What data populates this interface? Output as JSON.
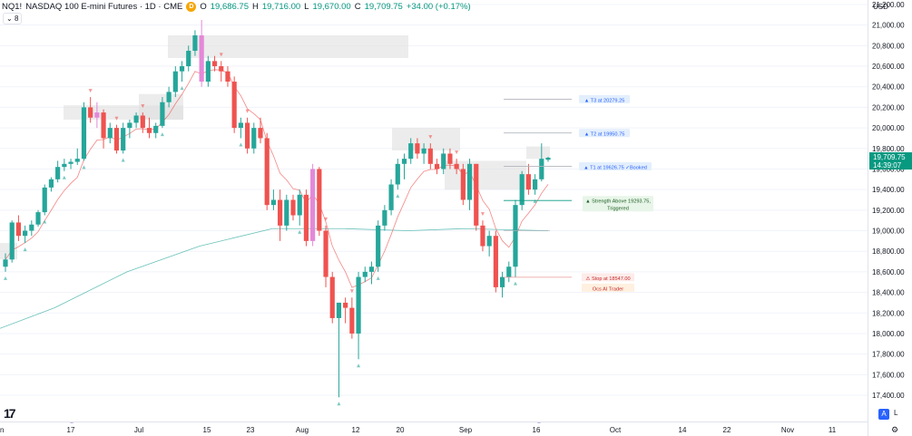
{
  "header": {
    "symbol": "NQ1!",
    "description": "NASDAQ 100 E-mini Futures · 1D · CME",
    "badge": "D",
    "open_label": "O",
    "open": "19,686.75",
    "high_label": "H",
    "high": "19,716.00",
    "low_label": "L",
    "low": "19,670.00",
    "close_label": "C",
    "close": "19,709.75",
    "change": "+34.00 (+0.17%)",
    "collapse_count": "8"
  },
  "currency": "USD",
  "last_price": {
    "value": "19,709.75",
    "countdown": "14:39:07",
    "color": "#089981"
  },
  "colors": {
    "up": "#26a69a",
    "down": "#ef5350",
    "highlight": "#e388d8",
    "ema_fast": "#ef5350",
    "ema_slow": "#26a69a",
    "zone": "#e0e0e0"
  },
  "annotations": {
    "t3": "▲ T3 at 20279.25",
    "t2": "▲ T2 at 19950.75",
    "t1": "▲ T1 at 19626.75 ✓Booked",
    "strength_line1": "▲ Strength Above 19293.75,",
    "strength_line2": "Triggered",
    "stop": "⚠ Stop at 18547.00",
    "trader": "Ocs AI Trader"
  },
  "chart_data": {
    "type": "candlestick",
    "y_ticks": [
      17400,
      17600,
      17800,
      18000,
      18200,
      18400,
      18600,
      18800,
      19000,
      19200,
      19400,
      19600,
      19800,
      20000,
      20200,
      20400,
      20600,
      20800,
      21000,
      21200
    ],
    "x_ticks": [
      "n",
      "17",
      "Jul",
      "15",
      "23",
      "Aug",
      "12",
      "20",
      "Sep",
      "16",
      "Oct",
      "14",
      "22",
      "Nov",
      "11"
    ],
    "candles": [
      [
        18650,
        18780,
        18600,
        18720
      ],
      [
        18720,
        19100,
        18690,
        19080
      ],
      [
        19080,
        19150,
        18900,
        18950
      ],
      [
        18950,
        19050,
        18880,
        19000
      ],
      [
        19000,
        19100,
        18950,
        19060
      ],
      [
        19060,
        19200,
        19040,
        19180
      ],
      [
        19180,
        19450,
        19150,
        19420
      ],
      [
        19420,
        19520,
        19380,
        19500
      ],
      [
        19500,
        19680,
        19470,
        19620
      ],
      [
        19620,
        19700,
        19580,
        19650
      ],
      [
        19650,
        19700,
        19600,
        19670
      ],
      [
        19670,
        19800,
        19640,
        19700
      ],
      [
        19700,
        20250,
        19680,
        20200
      ],
      [
        20200,
        20300,
        20050,
        20100
      ],
      [
        20100,
        20250,
        20000,
        20150
      ],
      [
        20150,
        20180,
        19800,
        19900
      ],
      [
        19900,
        20050,
        19850,
        20000
      ],
      [
        20000,
        20030,
        19750,
        19780
      ],
      [
        19780,
        20050,
        19750,
        20000
      ],
      [
        20000,
        20080,
        19900,
        20050
      ],
      [
        20050,
        20150,
        20000,
        20120
      ],
      [
        20120,
        20150,
        19950,
        20000
      ],
      [
        20000,
        20100,
        19900,
        19950
      ],
      [
        19950,
        20050,
        19900,
        20020
      ],
      [
        20020,
        20300,
        20000,
        20250
      ],
      [
        20250,
        20400,
        20200,
        20350
      ],
      [
        20350,
        20600,
        20300,
        20550
      ],
      [
        20550,
        20650,
        20450,
        20600
      ],
      [
        20600,
        20800,
        20550,
        20750
      ],
      [
        20750,
        20950,
        20700,
        20900
      ],
      [
        20900,
        21050,
        20400,
        20450
      ],
      [
        20450,
        20700,
        20400,
        20650
      ],
      [
        20650,
        20700,
        20550,
        20600
      ],
      [
        20600,
        20650,
        20450,
        20550
      ],
      [
        20550,
        20600,
        20400,
        20450
      ],
      [
        20450,
        20500,
        19950,
        20000
      ],
      [
        20000,
        20100,
        19900,
        20050
      ],
      [
        20050,
        20100,
        19750,
        19800
      ],
      [
        19800,
        20050,
        19750,
        20000
      ],
      [
        20000,
        20100,
        19850,
        19900
      ],
      [
        19900,
        19950,
        19200,
        19250
      ],
      [
        19250,
        19400,
        19200,
        19300
      ],
      [
        19300,
        19400,
        18900,
        19050
      ],
      [
        19050,
        19350,
        19000,
        19300
      ],
      [
        19300,
        19350,
        19100,
        19150
      ],
      [
        19150,
        19400,
        19050,
        19350
      ],
      [
        19350,
        19400,
        18850,
        18900
      ],
      [
        18900,
        19650,
        18850,
        19600
      ],
      [
        19600,
        19620,
        18950,
        19000
      ],
      [
        19000,
        19050,
        18450,
        18550
      ],
      [
        18550,
        18600,
        18100,
        18150
      ],
      [
        18150,
        18300,
        17380,
        18300
      ],
      [
        18300,
        18350,
        18100,
        18250
      ],
      [
        18250,
        18350,
        17950,
        18000
      ],
      [
        18000,
        18600,
        17750,
        18550
      ],
      [
        18550,
        18650,
        18500,
        18600
      ],
      [
        18600,
        18700,
        18480,
        18650
      ],
      [
        18650,
        19100,
        18600,
        19050
      ],
      [
        19050,
        19250,
        19000,
        19200
      ],
      [
        19200,
        19500,
        19150,
        19450
      ],
      [
        19450,
        19700,
        19400,
        19650
      ],
      [
        19650,
        19750,
        19500,
        19700
      ],
      [
        19700,
        19900,
        19650,
        19850
      ],
      [
        19850,
        19900,
        19700,
        19750
      ],
      [
        19750,
        19850,
        19650,
        19800
      ],
      [
        19800,
        19850,
        19600,
        19650
      ],
      [
        19650,
        19700,
        19550,
        19600
      ],
      [
        19600,
        19800,
        19550,
        19750
      ],
      [
        19750,
        19800,
        19600,
        19650
      ],
      [
        19650,
        19700,
        19550,
        19600
      ],
      [
        19600,
        19650,
        19250,
        19300
      ],
      [
        19300,
        19700,
        19200,
        19650
      ],
      [
        19650,
        19650,
        19000,
        19050
      ],
      [
        19050,
        19100,
        18800,
        18850
      ],
      [
        18850,
        19000,
        18750,
        18950
      ],
      [
        18950,
        19000,
        18400,
        18450
      ],
      [
        18450,
        18600,
        18350,
        18550
      ],
      [
        18550,
        18700,
        18500,
        18650
      ],
      [
        18650,
        19300,
        18550,
        19250
      ],
      [
        19250,
        19580,
        19200,
        19550
      ],
      [
        19550,
        19650,
        19350,
        19400
      ],
      [
        19400,
        19550,
        19350,
        19500
      ],
      [
        19500,
        19850,
        19480,
        19700
      ],
      [
        19690,
        19720,
        19670,
        19710
      ]
    ]
  }
}
